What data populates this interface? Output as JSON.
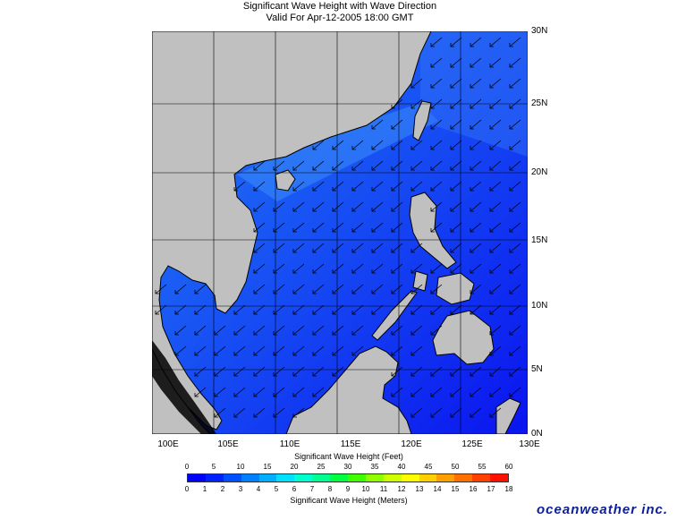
{
  "title": {
    "line1": "Significant Wave Height with Wave Direction",
    "line2": "Valid For Apr-12-2005 18:00 GMT"
  },
  "map": {
    "lat_labels": [
      "30N",
      "25N",
      "20N",
      "15N",
      "10N",
      "5N",
      "0N"
    ],
    "lon_labels": [
      "100E",
      "105E",
      "110E",
      "115E",
      "120E",
      "125E",
      "130E"
    ],
    "lat_range": [
      0,
      30
    ],
    "lon_range": [
      100,
      130
    ],
    "colors": {
      "land": "#c0c0c0",
      "coast": "#000000",
      "grid": "#000000",
      "sea_low": "#0a14ef",
      "sea_mid": "#1a5cf4",
      "sea_high": "#2f7bf6",
      "arrow": "#000000"
    },
    "wave_direction": "arrows point toward southwest across most of the basin"
  },
  "scale": {
    "feet_label": "Significant Wave Height (Feet)",
    "meters_label": "Significant Wave Height (Meters)",
    "feet_ticks": [
      "0",
      "5",
      "10",
      "15",
      "20",
      "25",
      "30",
      "35",
      "40",
      "45",
      "50",
      "55",
      "60"
    ],
    "meter_ticks": [
      "0",
      "1",
      "2",
      "3",
      "4",
      "5",
      "6",
      "7",
      "8",
      "9",
      "10",
      "11",
      "12",
      "13",
      "14",
      "15",
      "16",
      "17",
      "18"
    ],
    "colors": [
      "#0000ff",
      "#0022ff",
      "#0050ff",
      "#0080ff",
      "#00b0ff",
      "#00e0ff",
      "#00ffd0",
      "#00ff90",
      "#00ff40",
      "#40ff00",
      "#90ff00",
      "#d0ff00",
      "#ffff00",
      "#ffd000",
      "#ffa000",
      "#ff7000",
      "#ff4000",
      "#ff1000"
    ]
  },
  "brand": "oceanweather inc."
}
